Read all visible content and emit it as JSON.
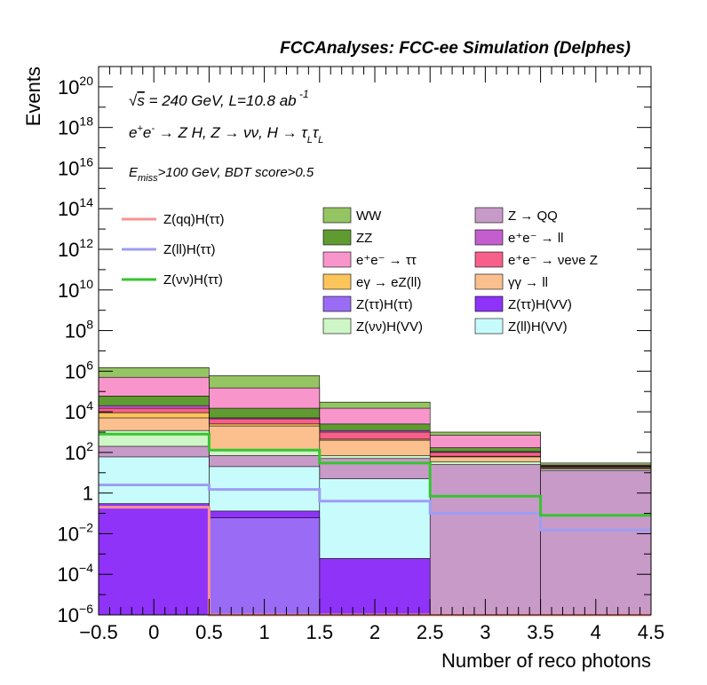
{
  "chart_data": {
    "type": "bar",
    "subtype": "stacked-histogram-log",
    "title": "FCCAnalyses: FCC-ee Simulation (Delphes)",
    "annotations": {
      "line1": "√s = 240 GeV, L=10.8 ab⁻¹",
      "line2": "e⁺e⁻ → Z H, Z → νν, H → τLτL",
      "line3": "Emiss>100 GeV, BDT score>0.5"
    },
    "xlabel": "Number of reco photons",
    "ylabel": "Events",
    "xlim": [
      -0.5,
      4.5
    ],
    "ylim": [
      1e-06,
      1e+21
    ],
    "log_y": true,
    "x_ticks": [
      "−0.5",
      "0",
      "0.5",
      "1",
      "1.5",
      "2",
      "2.5",
      "3",
      "3.5",
      "4",
      "4.5"
    ],
    "y_ticks": [
      {
        "base": "10",
        "exp": "−6",
        "v": 1e-06
      },
      {
        "base": "10",
        "exp": "−4",
        "v": 0.0001
      },
      {
        "base": "10",
        "exp": "−2",
        "v": 0.01
      },
      {
        "base": "1",
        "exp": "",
        "v": 1
      },
      {
        "base": "10",
        "exp": "2",
        "v": 100.0
      },
      {
        "base": "10",
        "exp": "4",
        "v": 10000.0
      },
      {
        "base": "10",
        "exp": "6",
        "v": 1000000.0
      },
      {
        "base": "10",
        "exp": "8",
        "v": 100000000.0
      },
      {
        "base": "10",
        "exp": "10",
        "v": 10000000000.0
      },
      {
        "base": "10",
        "exp": "12",
        "v": 1000000000000.0
      },
      {
        "base": "10",
        "exp": "14",
        "v": 100000000000000.0
      },
      {
        "base": "10",
        "exp": "16",
        "v": 1e+16
      },
      {
        "base": "10",
        "exp": "18",
        "v": 1e+18
      },
      {
        "base": "10",
        "exp": "20",
        "v": 1e+20
      }
    ],
    "bins": [
      0,
      1,
      2,
      3,
      4
    ],
    "bin_edges": [
      -0.5,
      0.5,
      1.5,
      2.5,
      3.5,
      4.5
    ],
    "stack_note": "cumulative top of each stacked component, bottom to top",
    "stack": [
      {
        "name": "Z(ττ)H(ττ)",
        "color": "#9a6cf5",
        "cum": [
          1e-06,
          0.06,
          1e-06,
          1e-06,
          1e-06
        ]
      },
      {
        "name": "Z(ττ)H(VV)",
        "color": "#8f33f8",
        "cum": [
          0.3,
          0.13,
          0.0006,
          1e-06,
          1e-06
        ]
      },
      {
        "name": "Z(ll)H(VV)",
        "color": "#c8fcfc",
        "cum": [
          60,
          20,
          5,
          1e-06,
          1e-06
        ]
      },
      {
        "name": "Z → QQ",
        "color": "#c89ac8",
        "cum": [
          200,
          70,
          50,
          25,
          13
        ]
      },
      {
        "name": "Z(νν)H(VV)",
        "color": "#cef6c6",
        "cum": [
          1200,
          130,
          70,
          35,
          15
        ]
      },
      {
        "name": "γγ → ll",
        "color": "#fbc08e",
        "cum": [
          5000,
          2000,
          400,
          60,
          17
        ]
      },
      {
        "name": "eγ → eZ(ll)",
        "color": "#fcc55c",
        "cum": [
          9000,
          2500,
          450,
          65,
          18
        ]
      },
      {
        "name": "e⁺e⁻ → νeνe Z",
        "color": "#f7608b",
        "cum": [
          15000,
          4500,
          1000,
          100,
          20
        ]
      },
      {
        "name": "e⁺e⁻ → ll",
        "color": "#c45ecf",
        "cum": [
          20000,
          5000,
          1200,
          110,
          21
        ]
      },
      {
        "name": "ZZ",
        "color": "#609b32",
        "cum": [
          60000,
          15000,
          2500,
          170,
          22
        ]
      },
      {
        "name": "e⁺e⁻ → ττ",
        "color": "#f896cc",
        "cum": [
          500000,
          150000,
          15000,
          700,
          24
        ]
      },
      {
        "name": "WW",
        "color": "#95c463",
        "cum": [
          1500000,
          600000,
          30000,
          1000,
          30
        ]
      }
    ],
    "signal_lines": [
      {
        "name": "Z(qq)H(ττ)",
        "color": "#f79393",
        "values": [
          0.2,
          1e-06,
          1e-06,
          1e-06,
          1e-06
        ]
      },
      {
        "name": "Z(ll)H(ττ)",
        "color": "#9d9df5",
        "values": [
          2.5,
          1.5,
          0.4,
          0.1,
          0.015
        ]
      },
      {
        "name": "Z(νν)H(ττ)",
        "color": "#36c430",
        "values": [
          800,
          130,
          30,
          0.7,
          0.08
        ]
      }
    ],
    "legend_placement": "upper-middle",
    "grid": false
  },
  "legend": {
    "signals": [
      "Z(qq)H(ττ)",
      "Z(ll)H(ττ)",
      "Z(νν)H(ττ)"
    ],
    "col1": [
      "WW",
      "ZZ",
      "e⁺e⁻ → ττ",
      "eγ → eZ(ll)",
      "Z(ττ)H(ττ)",
      "Z(νν)H(VV)"
    ],
    "col2": [
      "Z → QQ",
      "e⁺e⁻ → ll",
      "e⁺e⁻ → νeνe Z",
      "γγ → ll",
      "Z(ττ)H(VV)",
      "Z(ll)H(VV)"
    ]
  }
}
